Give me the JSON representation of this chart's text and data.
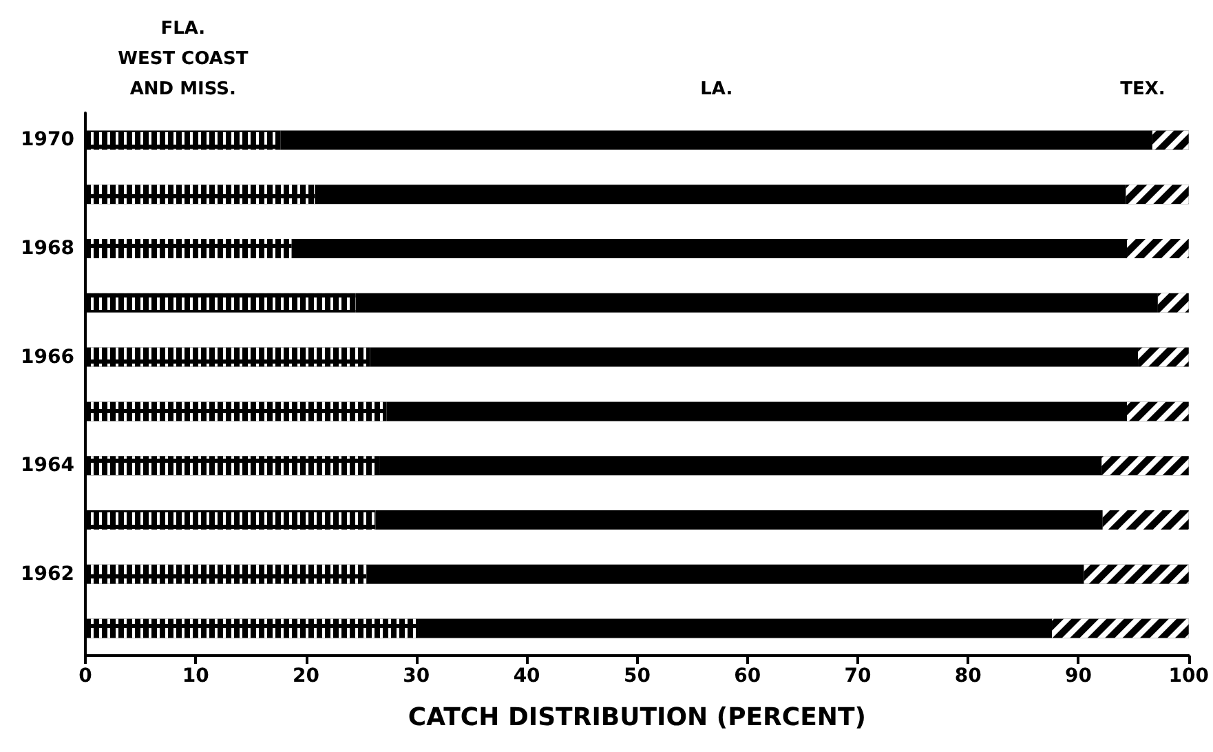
{
  "chart_data": {
    "type": "bar",
    "orientation": "horizontal",
    "stacked": true,
    "xlabel": "CATCH DISTRIBUTION (PERCENT)",
    "categories": [
      "1970",
      null,
      "1968",
      null,
      "1966",
      null,
      "1964",
      null,
      "1962",
      null
    ],
    "series": [
      {
        "name": "FLA.\nWEST COAST\nAND MISS.",
        "color": "#000000",
        "values": [
          17.7,
          20.8,
          18.7,
          24.5,
          25.8,
          27.3,
          26.7,
          26.3,
          25.5,
          30.2
        ]
      },
      {
        "name": "LA.",
        "color": "#000000",
        "values": [
          79.0,
          73.5,
          75.7,
          72.7,
          69.6,
          67.1,
          65.4,
          65.9,
          65.0,
          57.4
        ]
      },
      {
        "name": "TEX.",
        "color": "#000000",
        "values": [
          3.3,
          5.7,
          5.6,
          2.8,
          4.6,
          5.6,
          7.9,
          7.8,
          9.5,
          12.4
        ]
      }
    ],
    "xlim": [
      0,
      100
    ],
    "xticks": [
      0,
      10,
      20,
      30,
      40,
      50,
      60,
      70,
      80,
      90,
      100
    ],
    "grid": false,
    "legend": false
  }
}
